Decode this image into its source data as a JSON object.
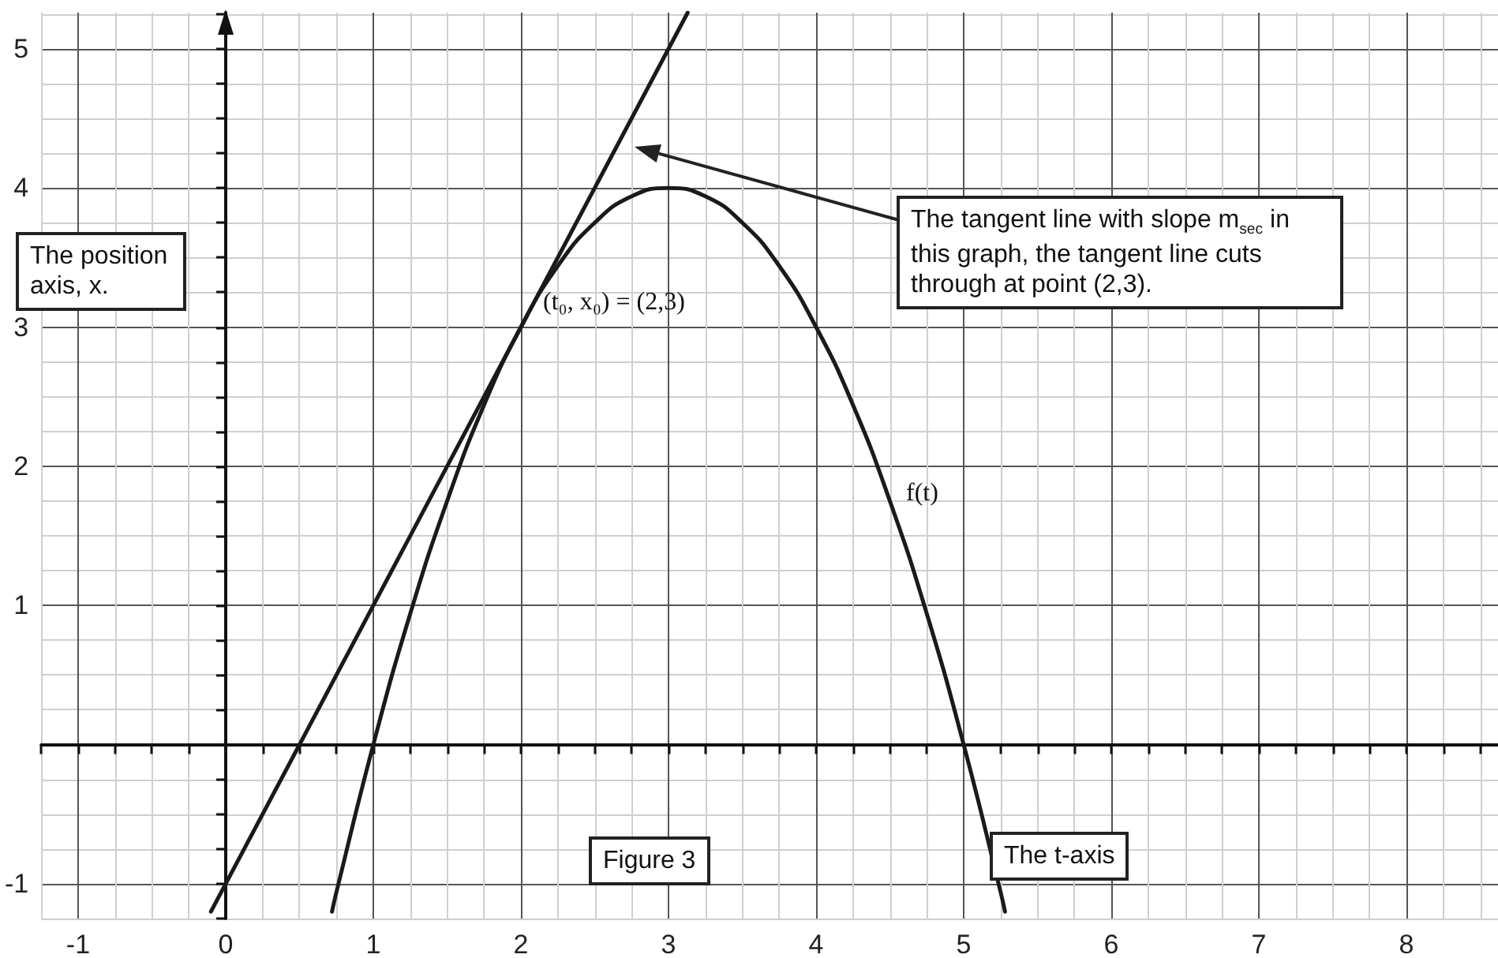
{
  "chart_data": {
    "type": "line",
    "title": "Figure 3",
    "xlabel": "The t-axis",
    "ylabel": "The position axis, x.",
    "annotations": [
      "The tangent line with slope m$_{sec}$ in this graph, the tangent line cuts through at point (2,3).",
      {
        "text": "(t₀, x₀) = (2,3)",
        "x": 2,
        "y": 3
      },
      "f(t)"
    ],
    "series": [
      {
        "color": "#1a1a1a",
        "x": [
          -0.1,
          3.13
        ],
        "values": [
          -1.2,
          5.26
        ]
      },
      {
        "color": "#1a1a1a",
        "x": [
          0.72,
          0.75,
          1,
          1.25,
          1.5,
          1.75,
          2,
          2.25,
          2.5,
          2.75,
          3,
          3.25,
          3.5,
          3.75,
          4,
          4.25,
          4.5,
          4.75,
          5,
          5.25,
          5.28
        ],
        "values": [
          -1.2,
          -1.06,
          0,
          0.94,
          1.75,
          2.44,
          3,
          3.44,
          3.75,
          3.94,
          4,
          3.94,
          3.75,
          3.44,
          3,
          2.44,
          1.75,
          0.94,
          0,
          -1.06,
          -1.2
        ]
      }
    ],
    "xlim": [
      -1.25,
      8.62
    ],
    "ylim": [
      -1.25,
      5.26
    ],
    "xticks": [
      {
        "value": -1.25,
        "label": null
      },
      "-1",
      {
        "value": -0.75,
        "label": null
      },
      {
        "value": -0.5,
        "label": null
      },
      {
        "value": -0.25,
        "label": null
      },
      0,
      {
        "value": 0.25,
        "label": null
      },
      {
        "value": 0.5,
        "label": null
      },
      {
        "value": 0.75,
        "label": null
      },
      1,
      {
        "value": 1.25,
        "label": null
      },
      {
        "value": 1.5,
        "label": null
      },
      {
        "value": 1.75,
        "label": null
      },
      2,
      {
        "value": 2.25,
        "label": null
      },
      {
        "value": 2.5,
        "label": null
      },
      {
        "value": 2.75,
        "label": null
      },
      3,
      {
        "value": 3.25,
        "label": null
      },
      {
        "value": 3.5,
        "label": null
      },
      {
        "value": 3.75,
        "label": null
      },
      4,
      {
        "value": 4.25,
        "label": null
      },
      {
        "value": 4.5,
        "label": null
      },
      {
        "value": 4.75,
        "label": null
      },
      5,
      {
        "value": 5.25,
        "label": null
      },
      {
        "value": 5.5,
        "label": null
      },
      {
        "value": 5.75,
        "label": null
      },
      6,
      {
        "value": 6.25,
        "label": null
      },
      {
        "value": 6.5,
        "label": null
      },
      {
        "value": 6.75,
        "label": null
      },
      7,
      {
        "value": 7.25,
        "label": null
      },
      {
        "value": 7.5,
        "label": null
      },
      {
        "value": 7.75,
        "label": null
      },
      8,
      {
        "value": 8.25,
        "label": null
      },
      {
        "value": 8.5,
        "label": null
      }
    ],
    "yticks": [
      {
        "value": -1.25,
        "label": null
      },
      -1,
      {
        "value": -0.75,
        "label": null
      },
      {
        "value": -0.5,
        "label": null
      },
      {
        "value": -0.25,
        "label": null
      },
      {
        "value": 0,
        "label": null
      },
      {
        "value": 0.25,
        "label": null
      },
      {
        "value": 0.5,
        "label": null
      },
      {
        "value": 0.75,
        "label": null
      },
      1,
      {
        "value": 1.25,
        "label": null
      },
      {
        "value": 1.5,
        "label": null
      },
      {
        "value": 1.75,
        "label": null
      },
      2,
      {
        "value": 2.25,
        "label": null
      },
      {
        "value": 2.5,
        "label": null
      },
      {
        "value": 2.75,
        "label": null
      },
      3,
      {
        "value": 3.25,
        "label": null
      },
      {
        "value": 3.5,
        "label": null
      },
      {
        "value": 3.75,
        "label": null
      },
      4,
      {
        "value": 4.25,
        "label": null
      },
      {
        "value": 4.5,
        "label": null
      },
      {
        "value": 4.75,
        "label": null
      },
      5,
      {
        "value": 5.25,
        "label": null
      }
    ],
    "grid": true,
    "marker": "none",
    "line_style": "solid"
  }
}
